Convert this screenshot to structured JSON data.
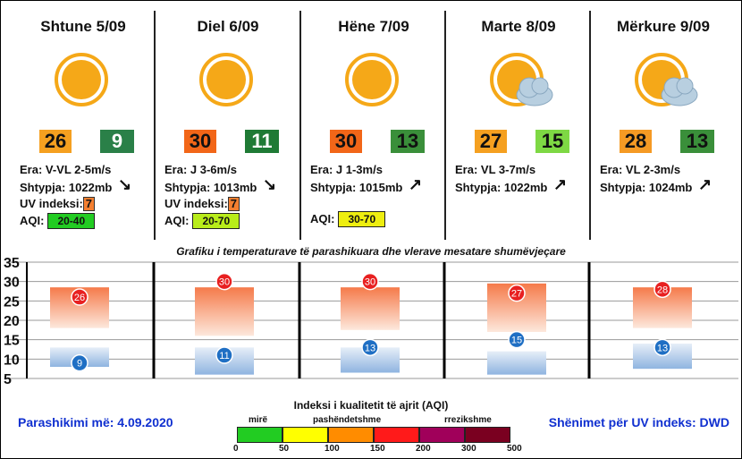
{
  "days": [
    {
      "title": "Shtune 5/09",
      "weather_icon": "sun-icon",
      "tmax": "26",
      "tmax_color": "#f5a020",
      "tmin": "9",
      "tmin_color": "#2a8048",
      "tmin_text": "#ffffff",
      "wind": "Era: V-VL 2-5m/s",
      "pressure": "Shtypja: 1022mb",
      "uv_label": "UV indeksi:",
      "uv_value": "7",
      "aqi_label": "AQI:",
      "aqi_value": "20-40",
      "aqi_color": "#22cc22",
      "arrow": "↘"
    },
    {
      "title": "Diel 6/09",
      "weather_icon": "sun-icon",
      "tmax": "30",
      "tmax_color": "#f26618",
      "tmin": "11",
      "tmin_color": "#1f7a35",
      "tmin_text": "#ffffff",
      "wind": "Era: J 3-6m/s",
      "pressure": "Shtypja: 1013mb",
      "uv_label": "UV indeksi:",
      "uv_value": "7",
      "aqi_label": "AQI:",
      "aqi_value": "20-70",
      "aqi_color": "#b8ec1a",
      "arrow": "↘"
    },
    {
      "title": "Hëne 7/09",
      "weather_icon": "sun-icon",
      "tmax": "30",
      "tmax_color": "#f26618",
      "tmin": "13",
      "tmin_color": "#3a8f3a",
      "tmin_text": "#111111",
      "wind": "Era: J 1-3m/s",
      "pressure": "Shtypja: 1015mb",
      "uv_label": "",
      "uv_value": "",
      "aqi_label": "AQI:",
      "aqi_value": "30-70",
      "aqi_color": "#eeee10",
      "arrow": "↗"
    },
    {
      "title": "Marte 8/09",
      "weather_icon": "sun-cloud-icon",
      "tmax": "27",
      "tmax_color": "#f5a020",
      "tmin": "15",
      "tmin_color": "#7ed844",
      "tmin_text": "#111111",
      "wind": "Era: VL 3-7m/s",
      "pressure": "Shtypja: 1022mb",
      "uv_label": "",
      "uv_value": "",
      "aqi_label": "",
      "aqi_value": "",
      "aqi_color": "",
      "arrow": "↗"
    },
    {
      "title": "Mërkure 9/09",
      "weather_icon": "sun-cloud-icon",
      "tmax": "28",
      "tmax_color": "#f59a24",
      "tmin": "13",
      "tmin_color": "#3a8f3a",
      "tmin_text": "#111111",
      "wind": "Era: VL 2-3m/s",
      "pressure": "Shtypja: 1024mb",
      "uv_label": "",
      "uv_value": "",
      "aqi_label": "",
      "aqi_value": "",
      "aqi_color": "",
      "arrow": "↗"
    }
  ],
  "chart_data": {
    "type": "bar",
    "title": "Grafiku i temperaturave të parashikuara dhe vlerave mesatare shumëvjeçare",
    "categories": [
      "Shtune 5/09",
      "Diel 6/09",
      "Hëne 7/09",
      "Marte 8/09",
      "Mërkure 9/09"
    ],
    "y_ticks": [
      "35",
      "30",
      "25",
      "20",
      "15",
      "10",
      "5"
    ],
    "ylim": [
      5,
      35
    ],
    "grid": true,
    "series": [
      {
        "values": [
          26,
          30,
          30,
          27,
          28
        ],
        "color": "#e82020"
      },
      {
        "values": [
          9,
          11,
          13,
          15,
          13
        ],
        "color": "#1f6fc4"
      }
    ],
    "max_band": [
      [
        18,
        28.5
      ],
      [
        16,
        28.5
      ],
      [
        17.5,
        28.5
      ],
      [
        17,
        29.5
      ],
      [
        18,
        28.5
      ]
    ],
    "min_band": [
      [
        8,
        13
      ],
      [
        6,
        13
      ],
      [
        6.5,
        13
      ],
      [
        6,
        12
      ],
      [
        7.5,
        14
      ]
    ]
  },
  "aqi_legend": {
    "title": "Indeksi i kualitetit të ajrit (AQI)",
    "top_labels": [
      "mirë",
      "pashëndetshme",
      "rrezikshme"
    ],
    "ticks": [
      "0",
      "50",
      "100",
      "150",
      "200",
      "300",
      "500"
    ],
    "colors": [
      "#22cc22",
      "#ffff00",
      "#ff8c00",
      "#ff1a1a",
      "#a0005a",
      "#7a0020"
    ]
  },
  "footer": {
    "left": "Parashikimi më: 4.09.2020",
    "right": "Shënimet për UV indeks: DWD"
  }
}
